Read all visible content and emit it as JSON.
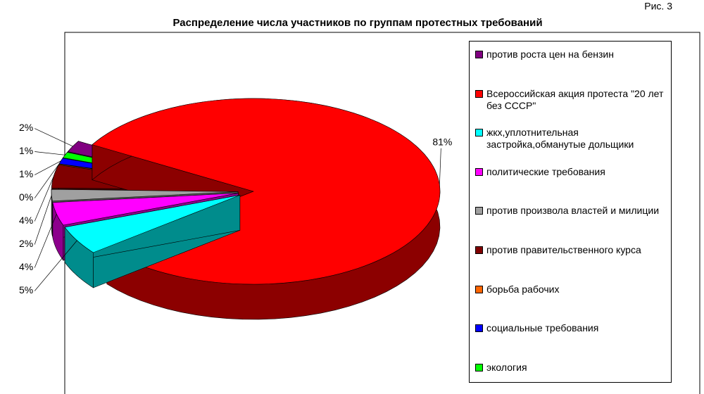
{
  "chart_data": {
    "type": "pie",
    "figure_label": "Рис. 3",
    "title": "Распределение числа участников по группам протестных требований",
    "categories": [
      "против роста цен на бензин",
      "Всероссийская акция протеста \"20 лет без СССР\"",
      "жкх,уплотнительная застройка,обманутые дольщики",
      "политические требования",
      "против произвола властей и милиции",
      "против правительственного курса",
      "борьба рабочих",
      "социальные требования",
      "экология"
    ],
    "values": [
      2,
      81,
      5,
      4,
      2,
      4,
      0,
      1,
      1
    ],
    "value_labels": [
      "2%",
      "81%",
      "5%",
      "4%",
      "2%",
      "4%",
      "0%",
      "1%",
      "1%"
    ],
    "colors": [
      "#800080",
      "#ff0000",
      "#00ffff",
      "#ff00ff",
      "#a0a0a0",
      "#800000",
      "#ff6600",
      "#0000ff",
      "#00ff00"
    ],
    "legend": "right"
  }
}
